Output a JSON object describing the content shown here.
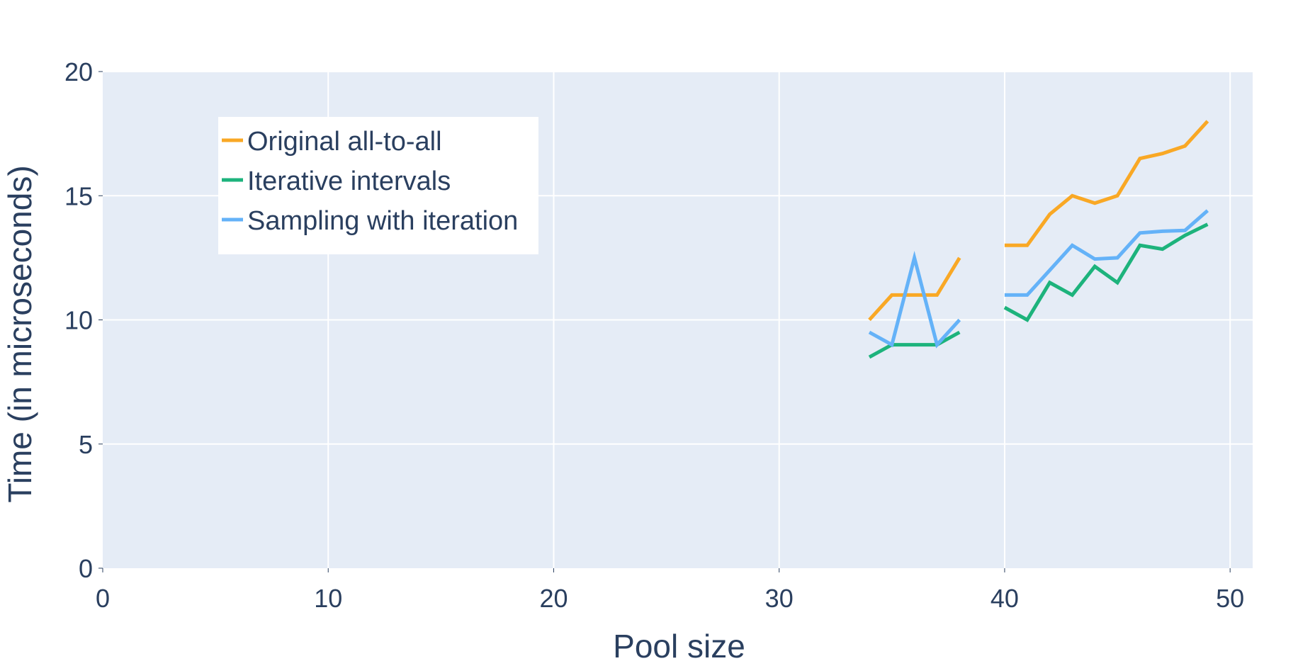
{
  "chart_data": {
    "type": "line",
    "xlabel": "Pool size",
    "ylabel": "Time (in microseconds)",
    "xlim": [
      0,
      51
    ],
    "ylim": [
      0,
      20
    ],
    "xticks": [
      0,
      10,
      20,
      30,
      40,
      50
    ],
    "yticks": [
      0,
      5,
      10,
      15,
      20
    ],
    "grid": true,
    "legend_position": "top-left",
    "background_color": "#e5ecf6",
    "series": [
      {
        "name": "Original all-to-all",
        "color": "#f9a825",
        "x": [
          34,
          35,
          36,
          37,
          38,
          null,
          40,
          41,
          42,
          43,
          44,
          45,
          46,
          47,
          48,
          49
        ],
        "y": [
          10,
          11,
          11,
          11,
          12.5,
          null,
          13,
          13,
          14.25,
          15,
          14.7,
          15,
          16.5,
          16.7,
          17,
          18
        ]
      },
      {
        "name": "Iterative intervals",
        "color": "#1db37c",
        "x": [
          34,
          35,
          36,
          37,
          38,
          null,
          40,
          41,
          42,
          43,
          44,
          45,
          46,
          47,
          48,
          49
        ],
        "y": [
          8.5,
          9,
          9,
          9,
          9.5,
          null,
          10.5,
          10,
          11.5,
          11,
          12.15,
          11.5,
          13,
          12.85,
          13.4,
          13.85
        ]
      },
      {
        "name": "Sampling with iteration",
        "color": "#64b2f8",
        "x": [
          34,
          35,
          36,
          37,
          38,
          null,
          40,
          41,
          42,
          43,
          44,
          45,
          46,
          47,
          48,
          49
        ],
        "y": [
          9.5,
          9,
          12.5,
          9,
          10,
          null,
          11,
          11,
          12,
          13,
          12.45,
          12.5,
          13.5,
          13.57,
          13.6,
          14.4
        ]
      }
    ]
  }
}
